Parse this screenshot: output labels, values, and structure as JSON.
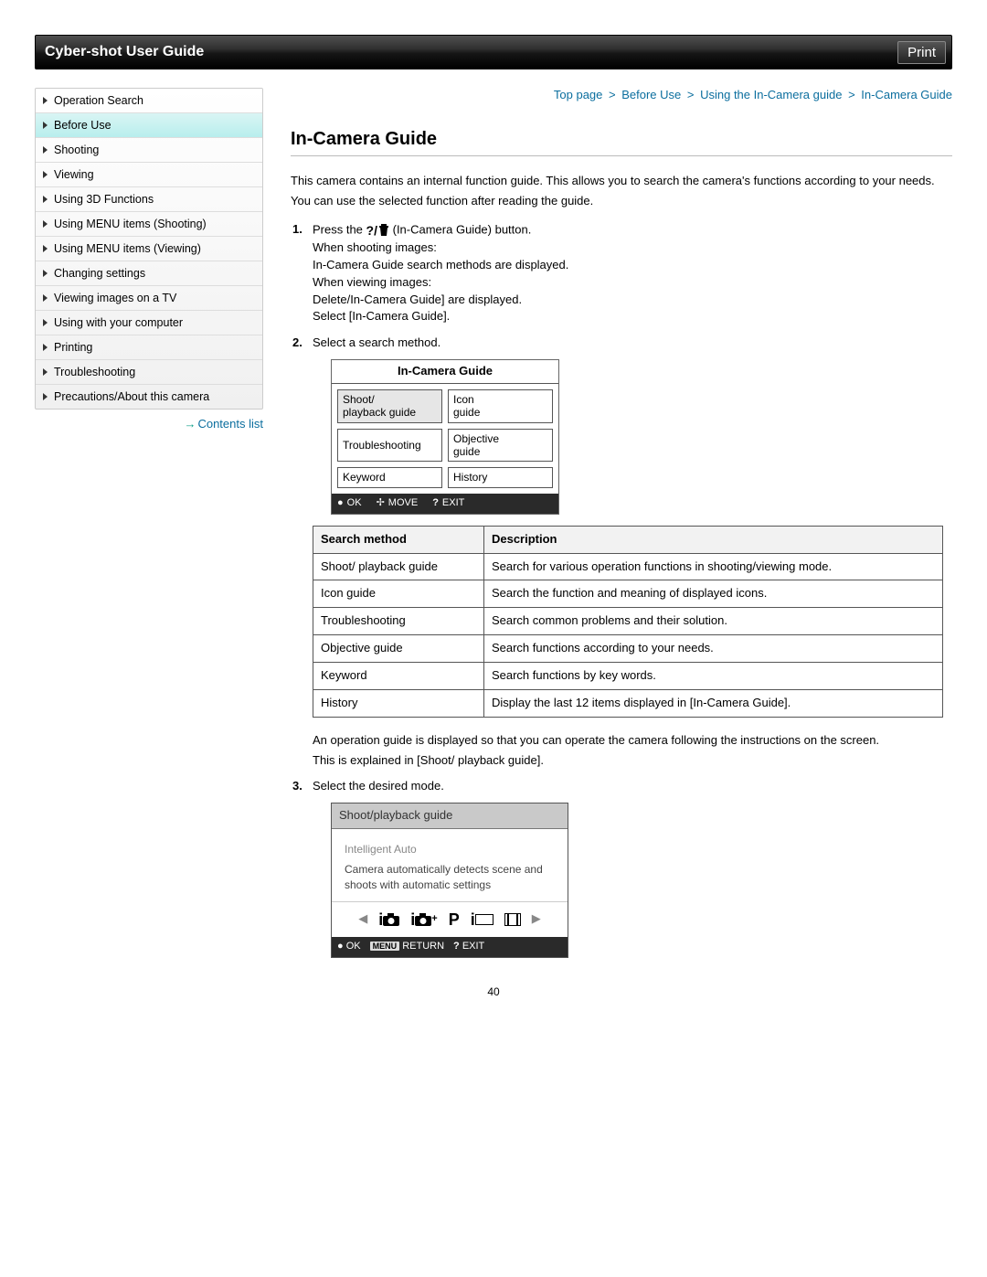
{
  "header": {
    "title": "Cyber-shot User Guide",
    "print_label": "Print"
  },
  "sidebar": {
    "items": [
      {
        "label": "Operation Search",
        "active": false
      },
      {
        "label": "Before Use",
        "active": true
      },
      {
        "label": "Shooting",
        "active": false
      },
      {
        "label": "Viewing",
        "active": false
      },
      {
        "label": "Using 3D Functions",
        "active": false
      },
      {
        "label": "Using MENU items (Shooting)",
        "active": false
      },
      {
        "label": "Using MENU items (Viewing)",
        "active": false
      },
      {
        "label": "Changing settings",
        "active": false
      },
      {
        "label": "Viewing images on a TV",
        "active": false
      },
      {
        "label": "Using with your computer",
        "active": false
      },
      {
        "label": "Printing",
        "active": false
      },
      {
        "label": "Troubleshooting",
        "active": false
      },
      {
        "label": "Precautions/About this camera",
        "active": false
      }
    ],
    "contents_link": "Contents list"
  },
  "breadcrumb": [
    "Top page",
    "Before Use",
    "Using the In-Camera guide",
    "In-Camera Guide"
  ],
  "page_title": "In-Camera Guide",
  "intro": [
    "This camera contains an internal function guide. This allows you to search the camera's functions according to your needs.",
    "You can use the selected function after reading the guide."
  ],
  "steps": {
    "s1": {
      "num": "1.",
      "lead_a": "Press the ",
      "lead_b": " (In-Camera Guide) button.",
      "lines": [
        "When shooting images:",
        "In-Camera Guide search methods are displayed.",
        "When viewing images:",
        "Delete/In-Camera Guide] are displayed.",
        "Select [In-Camera Guide]."
      ]
    },
    "s2": {
      "num": "2.",
      "text": "Select a search method."
    },
    "s3": {
      "num": "3.",
      "text": "Select the desired mode."
    }
  },
  "fig1": {
    "title": "In-Camera Guide",
    "cells": [
      {
        "label": "Shoot/\nplayback guide",
        "selected": true
      },
      {
        "label": "Icon\nguide",
        "selected": false
      },
      {
        "label": "Troubleshooting",
        "selected": false
      },
      {
        "label": "Objective\nguide",
        "selected": false
      },
      {
        "label": "Keyword",
        "selected": false
      },
      {
        "label": "History",
        "selected": false
      }
    ],
    "footer": {
      "ok": "OK",
      "move": "MOVE",
      "exit": "EXIT"
    }
  },
  "table": {
    "headers": [
      "Search method",
      "Description"
    ],
    "rows": [
      [
        "Shoot/ playback guide",
        "Search for various operation functions in shooting/viewing mode."
      ],
      [
        "Icon guide",
        "Search the function and meaning of displayed icons."
      ],
      [
        "Troubleshooting",
        "Search common problems and their solution."
      ],
      [
        "Objective guide",
        "Search functions according to your needs."
      ],
      [
        "Keyword",
        "Search functions by key words."
      ],
      [
        "History",
        "Display the last 12 items displayed in [In-Camera Guide]."
      ]
    ]
  },
  "after_table": [
    "An operation guide is displayed so that you can operate the camera following the instructions on the screen.",
    "This is explained in [Shoot/ playback guide]."
  ],
  "fig2": {
    "top": "Shoot/playback guide",
    "mode_title": "Intelligent Auto",
    "mode_desc": "Camera automatically detects scene and shoots with automatic settings",
    "footer": {
      "ok": "OK",
      "menu": "MENU",
      "return": "RETURN",
      "exit": "EXIT"
    }
  },
  "page_number": "40",
  "colors": {
    "link": "#0b6e9e",
    "topbar_bg_dark": "#000000",
    "active_nav_bg": "#b8eeed"
  }
}
